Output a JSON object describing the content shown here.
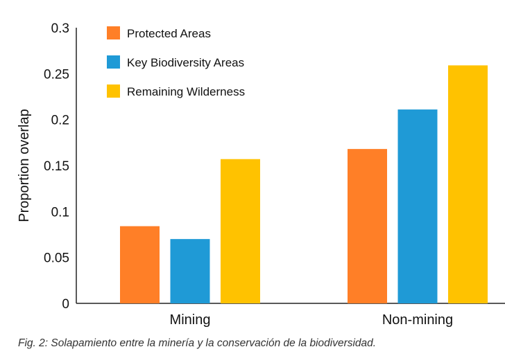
{
  "chart_data": {
    "type": "bar",
    "title": "",
    "xlabel": "",
    "ylabel": "Proportion overlap",
    "ylim": [
      0,
      0.3
    ],
    "yticks": [
      0,
      0.05,
      0.1,
      0.15,
      0.2,
      0.25,
      0.3
    ],
    "ytick_labels": [
      "0",
      "0.05",
      "0.1",
      "0.15",
      "0.2",
      "0.25",
      "0.3"
    ],
    "categories": [
      "Mining",
      "Non-mining"
    ],
    "series": [
      {
        "name": "Protected Areas",
        "color": "#FF7F27",
        "values": [
          0.084,
          0.168
        ]
      },
      {
        "name": "Key Biodiversity Areas",
        "color": "#1F9AD6",
        "values": [
          0.07,
          0.211
        ]
      },
      {
        "name": "Remaining Wilderness",
        "color": "#FFC200",
        "values": [
          0.157,
          0.259
        ]
      }
    ],
    "grid": false,
    "legend_position": "top-left"
  },
  "caption": "Fig. 2: Solapamiento entre la minería y la conservación de la biodiversidad."
}
